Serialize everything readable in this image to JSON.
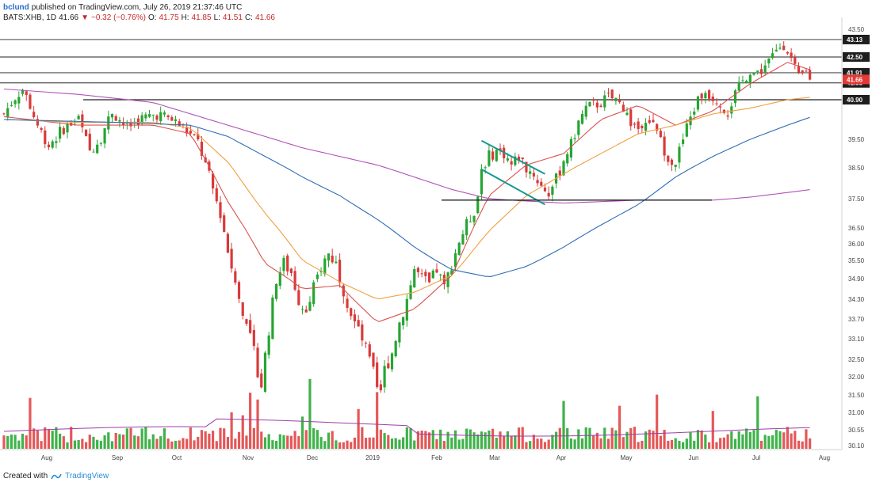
{
  "header": {
    "author": "bclund",
    "published_text": "published on TradingView.com, July 26, 2019 21:37:46 UTC",
    "symbol": "BATS:XHB, 1D",
    "last": "41.66",
    "change_arrow": "▼",
    "change": "−0.32 (−0.76%)",
    "open_label": "O:",
    "open": "41.75",
    "high_label": "H:",
    "high": "41.85",
    "low_label": "L:",
    "low": "41.51",
    "close_label": "C:",
    "close": "41.66"
  },
  "footer": {
    "created_with": "Created with",
    "brand": "TradingView"
  },
  "colors": {
    "up": "#26a532",
    "down": "#d93a3a",
    "vol_up": "#3fb24a",
    "vol_down": "#e45858",
    "ma_red": "#d9534f",
    "ma_orange": "#f0a040",
    "ma_blue": "#2f6db5",
    "ma_purple": "#b24fb8",
    "vol_ma": "#9b3fa8",
    "channel": "#14998f",
    "hline": "#222222",
    "last_tag": "#e53935"
  },
  "chart_data": {
    "type": "candlestick",
    "symbol": "BATS:XHB",
    "interval": "1D",
    "x_tick_labels": [
      "Aug",
      "Sep",
      "Oct",
      "Nov",
      "Dec",
      "2019",
      "Feb",
      "Mar",
      "Apr",
      "May",
      "Jun",
      "Jul",
      "Aug"
    ],
    "y_tick_labels": [
      "43.50",
      "42.50",
      "40.90",
      "39.50",
      "38.50",
      "37.50",
      "36.50",
      "36.00",
      "35.50",
      "34.90",
      "34.30",
      "33.70",
      "33.10",
      "32.50",
      "32.00",
      "31.50",
      "31.00",
      "30.55",
      "30.10"
    ],
    "ylim": [
      30.1,
      43.5
    ],
    "horizontal_levels": [
      {
        "value": 43.13,
        "label": "43.13"
      },
      {
        "value": 42.5,
        "label": "42.50"
      },
      {
        "value": 41.91,
        "label": "41.91"
      },
      {
        "value": 41.53,
        "label": "41.53"
      },
      {
        "value": 40.9,
        "label": "40.90"
      }
    ],
    "last_price_tag": {
      "value": 41.66,
      "label": "41.66"
    },
    "support_line": {
      "value": 37.45
    },
    "close_path_points": [
      [
        0,
        40.4
      ],
      [
        6,
        41.0
      ],
      [
        10,
        41.3
      ],
      [
        14,
        40.7
      ],
      [
        18,
        40.0
      ],
      [
        24,
        39.3
      ],
      [
        32,
        39.9
      ],
      [
        40,
        40.2
      ],
      [
        46,
        39.1
      ],
      [
        52,
        39.6
      ],
      [
        58,
        40.5
      ],
      [
        66,
        39.9
      ],
      [
        72,
        40.2
      ],
      [
        82,
        40.4
      ],
      [
        90,
        40.2
      ],
      [
        96,
        39.9
      ],
      [
        104,
        39.4
      ],
      [
        110,
        38.2
      ],
      [
        116,
        37.0
      ],
      [
        120,
        35.8
      ],
      [
        124,
        34.8
      ],
      [
        128,
        33.8
      ],
      [
        132,
        33.2
      ],
      [
        135,
        32.4
      ],
      [
        138,
        31.8
      ],
      [
        142,
        33.4
      ],
      [
        146,
        34.9
      ],
      [
        150,
        35.4
      ],
      [
        154,
        35.1
      ],
      [
        158,
        34.3
      ],
      [
        162,
        33.9
      ],
      [
        166,
        34.6
      ],
      [
        170,
        35.3
      ],
      [
        174,
        35.7
      ],
      [
        178,
        35.4
      ],
      [
        182,
        34.6
      ],
      [
        186,
        33.9
      ],
      [
        190,
        33.3
      ],
      [
        194,
        32.8
      ],
      [
        198,
        32.1
      ],
      [
        201,
        31.3
      ],
      [
        204,
        32.2
      ],
      [
        208,
        32.7
      ],
      [
        212,
        33.6
      ],
      [
        216,
        34.3
      ],
      [
        220,
        35.2
      ],
      [
        224,
        34.9
      ],
      [
        228,
        34.7
      ],
      [
        232,
        35.2
      ],
      [
        236,
        34.6
      ],
      [
        240,
        35.4
      ],
      [
        244,
        36.1
      ],
      [
        248,
        36.6
      ],
      [
        252,
        37.1
      ],
      [
        254,
        37.6
      ],
      [
        256,
        38.5
      ],
      [
        260,
        38.9
      ],
      [
        264,
        39.1
      ],
      [
        268,
        39.0
      ],
      [
        272,
        38.6
      ],
      [
        276,
        38.9
      ],
      [
        280,
        38.5
      ],
      [
        284,
        38.3
      ],
      [
        288,
        37.9
      ],
      [
        292,
        37.7
      ],
      [
        296,
        38.1
      ],
      [
        300,
        38.8
      ],
      [
        304,
        39.3
      ],
      [
        308,
        40.1
      ],
      [
        312,
        40.6
      ],
      [
        316,
        40.7
      ],
      [
        320,
        40.8
      ],
      [
        324,
        41.0
      ],
      [
        328,
        40.9
      ],
      [
        332,
        40.6
      ],
      [
        336,
        40.1
      ],
      [
        340,
        39.9
      ],
      [
        344,
        40.3
      ],
      [
        348,
        40.0
      ],
      [
        352,
        39.4
      ],
      [
        356,
        38.9
      ],
      [
        360,
        38.7
      ],
      [
        364,
        39.5
      ],
      [
        368,
        40.3
      ],
      [
        372,
        40.9
      ],
      [
        376,
        41.2
      ],
      [
        380,
        41.0
      ],
      [
        384,
        40.7
      ],
      [
        388,
        40.5
      ],
      [
        392,
        41.1
      ],
      [
        396,
        41.6
      ],
      [
        400,
        42.0
      ],
      [
        404,
        41.8
      ],
      [
        408,
        42.2
      ],
      [
        412,
        42.5
      ],
      [
        416,
        42.9
      ],
      [
        419,
        43.0
      ],
      [
        422,
        42.4
      ],
      [
        426,
        41.7
      ],
      [
        430,
        41.9
      ],
      [
        433,
        41.66
      ]
    ],
    "n_bars": 434,
    "moving_averages": [
      {
        "name": "MA (short)",
        "color_key": "ma_red",
        "points": [
          [
            0,
            40.3
          ],
          [
            40,
            40.0
          ],
          [
            80,
            40.0
          ],
          [
            100,
            39.7
          ],
          [
            120,
            37.4
          ],
          [
            140,
            35.4
          ],
          [
            160,
            34.6
          ],
          [
            180,
            34.7
          ],
          [
            200,
            33.6
          ],
          [
            220,
            34.0
          ],
          [
            240,
            35.0
          ],
          [
            260,
            37.6
          ],
          [
            280,
            38.6
          ],
          [
            300,
            39.0
          ],
          [
            320,
            40.2
          ],
          [
            340,
            40.7
          ],
          [
            360,
            40.0
          ],
          [
            380,
            40.5
          ],
          [
            400,
            41.5
          ],
          [
            420,
            42.3
          ],
          [
            433,
            42.0
          ]
        ]
      },
      {
        "name": "MA (medium)",
        "color_key": "ma_orange",
        "points": [
          [
            0,
            40.2
          ],
          [
            40,
            40.1
          ],
          [
            80,
            40.1
          ],
          [
            100,
            39.9
          ],
          [
            120,
            38.7
          ],
          [
            140,
            37.0
          ],
          [
            160,
            35.5
          ],
          [
            180,
            34.8
          ],
          [
            200,
            34.3
          ],
          [
            220,
            34.5
          ],
          [
            240,
            35.0
          ],
          [
            260,
            36.4
          ],
          [
            280,
            37.6
          ],
          [
            300,
            38.3
          ],
          [
            320,
            39.0
          ],
          [
            340,
            39.7
          ],
          [
            360,
            40.0
          ],
          [
            380,
            40.4
          ],
          [
            400,
            40.6
          ],
          [
            420,
            40.9
          ],
          [
            433,
            41.0
          ]
        ]
      },
      {
        "name": "MA (long)",
        "color_key": "ma_blue",
        "points": [
          [
            0,
            40.2
          ],
          [
            60,
            40.1
          ],
          [
            100,
            40.0
          ],
          [
            120,
            39.6
          ],
          [
            140,
            38.9
          ],
          [
            160,
            38.2
          ],
          [
            180,
            37.6
          ],
          [
            200,
            36.8
          ],
          [
            220,
            35.9
          ],
          [
            240,
            35.2
          ],
          [
            260,
            34.95
          ],
          [
            280,
            35.3
          ],
          [
            300,
            35.9
          ],
          [
            320,
            36.6
          ],
          [
            340,
            37.3
          ],
          [
            360,
            38.2
          ],
          [
            380,
            38.9
          ],
          [
            400,
            39.5
          ],
          [
            420,
            40.0
          ],
          [
            433,
            40.3
          ]
        ]
      },
      {
        "name": "MA (very long)",
        "color_key": "ma_purple",
        "points": [
          [
            0,
            41.3
          ],
          [
            40,
            41.1
          ],
          [
            80,
            40.8
          ],
          [
            120,
            40.0
          ],
          [
            160,
            39.2
          ],
          [
            200,
            38.6
          ],
          [
            240,
            37.8
          ],
          [
            260,
            37.5
          ],
          [
            280,
            37.42
          ],
          [
            300,
            37.35
          ],
          [
            320,
            37.4
          ],
          [
            340,
            37.45
          ],
          [
            360,
            37.45
          ],
          [
            380,
            37.45
          ],
          [
            400,
            37.55
          ],
          [
            420,
            37.7
          ],
          [
            433,
            37.8
          ]
        ]
      }
    ],
    "annotations": [
      {
        "type": "channel",
        "start": [
          256,
          39.45
        ],
        "end": [
          290,
          38.3
        ]
      },
      {
        "type": "channel",
        "start": [
          256,
          38.45
        ],
        "end": [
          290,
          37.3
        ]
      }
    ],
    "volume_profile": {
      "base": 10,
      "spike_bars": [
        14,
        122,
        128,
        132,
        136,
        160,
        164,
        190,
        200,
        300,
        330,
        350,
        380,
        404
      ]
    }
  }
}
